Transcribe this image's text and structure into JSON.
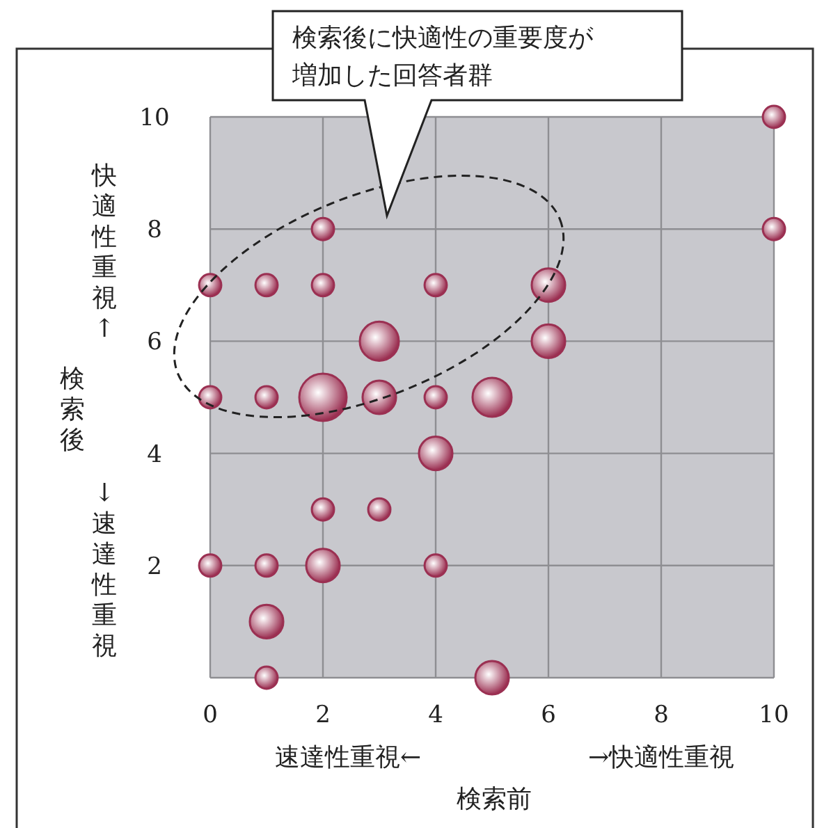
{
  "chart_data": {
    "type": "bubble",
    "xlabel": "検索前",
    "ylabel": "検索後",
    "x": [
      10,
      10,
      2,
      0,
      1,
      2,
      4,
      6,
      3,
      6,
      0,
      1,
      2,
      3,
      4,
      5,
      4,
      2,
      3,
      0,
      1,
      2,
      4,
      1,
      1,
      5
    ],
    "values": [
      10,
      8,
      8,
      7,
      7,
      7,
      7,
      7,
      6,
      6,
      5,
      5,
      5,
      5,
      5,
      5,
      4,
      3,
      3,
      2,
      2,
      2,
      2,
      1,
      0,
      0
    ],
    "sizes": [
      0.22,
      0.22,
      0.22,
      0.22,
      0.22,
      0.22,
      0.22,
      0.5,
      0.68,
      0.5,
      0.22,
      0.22,
      1,
      0.5,
      0.22,
      0.68,
      0.5,
      0.22,
      0.22,
      0.22,
      0.22,
      0.5,
      0.22,
      0.5,
      0.22,
      0.5
    ],
    "color": "#9b3052",
    "xlim": [
      0,
      10
    ],
    "ylim": [
      0,
      10
    ],
    "xticks": [
      0,
      2,
      4,
      6,
      8,
      10
    ],
    "yticks": [
      {
        "value": 0,
        "label": null
      },
      2,
      4,
      6,
      8,
      10
    ],
    "grid": true,
    "annotations": [
      "速達性重視←",
      "→快適性重視",
      "快適性重視↑",
      "↓速達性重視",
      "検索後に快適性の重要度が増加した回答者群"
    ]
  }
}
